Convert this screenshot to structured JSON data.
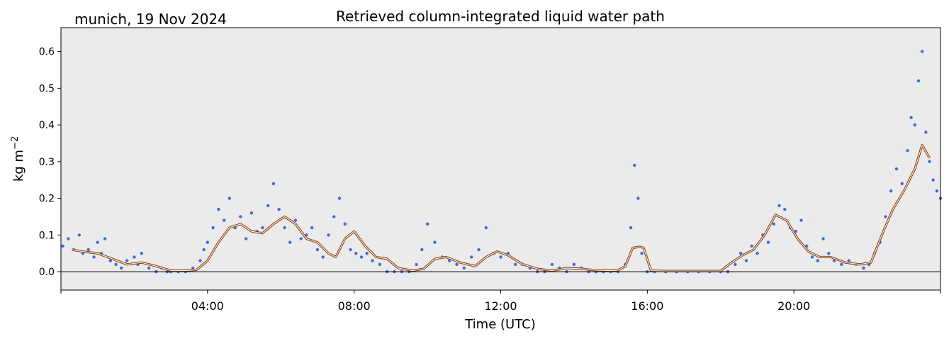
{
  "figure": {
    "location_date": "munich, 19 Nov 2024",
    "title": "Retrieved column-integrated liquid water path"
  },
  "colors": {
    "background_plot": "#ebebeb",
    "raw_points": "#4169e1",
    "smoothed_outer": "#8b4513",
    "smoothed_inner": "#ffffff",
    "zero_line": "#000000"
  },
  "chart_data": {
    "type": "line",
    "title": "Retrieved column-integrated liquid water path",
    "xlabel": "Time (UTC)",
    "ylabel_base": "kg m",
    "ylabel_sup": "−2",
    "xlim": [
      0,
      24
    ],
    "ylim": [
      -0.05,
      0.665
    ],
    "x_ticks": [
      {
        "x": 4,
        "label": "04:00"
      },
      {
        "x": 8,
        "label": "08:00"
      },
      {
        "x": 12,
        "label": "12:00"
      },
      {
        "x": 16,
        "label": "16:00"
      },
      {
        "x": 20,
        "label": "20:00"
      }
    ],
    "x_minor_ticks": [
      0,
      24
    ],
    "y_ticks": [
      {
        "y": 0.0,
        "label": "0.0"
      },
      {
        "y": 0.1,
        "label": "0.1"
      },
      {
        "y": 0.2,
        "label": "0.2"
      },
      {
        "y": 0.3,
        "label": "0.3"
      },
      {
        "y": 0.4,
        "label": "0.4"
      },
      {
        "y": 0.5,
        "label": "0.5"
      },
      {
        "y": 0.6,
        "label": "0.6"
      }
    ],
    "reference_line_y": 0.0,
    "grid": false,
    "series": [
      {
        "kind": "scatter",
        "x": [
          0.05,
          0.2,
          0.35,
          0.5,
          0.6,
          0.75,
          0.9,
          1.0,
          1.1,
          1.2,
          1.35,
          1.5,
          1.65,
          1.8,
          2.0,
          2.1,
          2.2,
          2.4,
          2.6,
          2.75,
          2.9,
          3.0,
          3.2,
          3.4,
          3.6,
          3.8,
          3.9,
          4.0,
          4.15,
          4.3,
          4.45,
          4.6,
          4.75,
          4.9,
          5.05,
          5.2,
          5.35,
          5.5,
          5.65,
          5.8,
          5.95,
          6.1,
          6.25,
          6.4,
          6.55,
          6.7,
          6.85,
          7.0,
          7.15,
          7.3,
          7.45,
          7.6,
          7.75,
          7.9,
          8.05,
          8.2,
          8.35,
          8.5,
          8.7,
          8.9,
          9.1,
          9.3,
          9.5,
          9.7,
          9.85,
          10.0,
          10.2,
          10.4,
          10.6,
          10.8,
          11.0,
          11.2,
          11.4,
          11.6,
          11.8,
          12.0,
          12.2,
          12.4,
          12.6,
          12.8,
          13.0,
          13.2,
          13.4,
          13.6,
          13.8,
          14.0,
          14.2,
          14.4,
          14.6,
          14.8,
          15.0,
          15.2,
          15.4,
          15.55,
          15.65,
          15.75,
          15.85,
          16.0,
          16.2,
          16.5,
          16.8,
          17.1,
          17.4,
          17.7,
          18.0,
          18.2,
          18.4,
          18.55,
          18.7,
          18.85,
          19.0,
          19.15,
          19.3,
          19.45,
          19.6,
          19.75,
          19.9,
          20.05,
          20.2,
          20.35,
          20.5,
          20.65,
          20.8,
          20.95,
          21.1,
          21.3,
          21.5,
          21.7,
          21.9,
          22.05,
          22.2,
          22.35,
          22.5,
          22.65,
          22.8,
          22.95,
          23.1,
          23.2,
          23.3,
          23.4,
          23.5,
          23.6,
          23.7,
          23.8,
          23.9,
          24.0
        ],
        "y": [
          0.07,
          0.09,
          0.06,
          0.1,
          0.05,
          0.06,
          0.04,
          0.08,
          0.05,
          0.09,
          0.03,
          0.02,
          0.01,
          0.03,
          0.04,
          0.02,
          0.05,
          0.01,
          0.0,
          0.01,
          0.0,
          0.0,
          0.0,
          0.0,
          0.01,
          0.03,
          0.06,
          0.08,
          0.12,
          0.17,
          0.14,
          0.2,
          0.12,
          0.15,
          0.09,
          0.16,
          0.11,
          0.12,
          0.18,
          0.24,
          0.17,
          0.12,
          0.08,
          0.14,
          0.09,
          0.1,
          0.12,
          0.06,
          0.04,
          0.1,
          0.15,
          0.2,
          0.13,
          0.06,
          0.05,
          0.04,
          0.05,
          0.03,
          0.02,
          0.0,
          0.0,
          0.0,
          0.0,
          0.02,
          0.06,
          0.13,
          0.08,
          0.04,
          0.03,
          0.02,
          0.01,
          0.04,
          0.06,
          0.12,
          0.05,
          0.04,
          0.05,
          0.02,
          0.02,
          0.01,
          0.0,
          0.0,
          0.02,
          0.01,
          0.0,
          0.02,
          0.01,
          0.0,
          0.0,
          0.0,
          0.0,
          0.0,
          0.02,
          0.12,
          0.29,
          0.2,
          0.05,
          0.0,
          0.0,
          0.0,
          0.0,
          0.0,
          0.0,
          0.0,
          0.0,
          0.0,
          0.02,
          0.05,
          0.03,
          0.07,
          0.05,
          0.1,
          0.08,
          0.13,
          0.18,
          0.17,
          0.12,
          0.11,
          0.14,
          0.07,
          0.04,
          0.03,
          0.09,
          0.05,
          0.03,
          0.02,
          0.03,
          0.02,
          0.01,
          0.02,
          0.05,
          0.08,
          0.15,
          0.22,
          0.28,
          0.24,
          0.33,
          0.42,
          0.4,
          0.52,
          0.6,
          0.38,
          0.3,
          0.25,
          0.22,
          0.2
        ]
      },
      {
        "kind": "line",
        "x": [
          0.3,
          0.6,
          1.0,
          1.4,
          1.8,
          2.2,
          2.6,
          3.0,
          3.4,
          3.7,
          4.0,
          4.3,
          4.6,
          4.9,
          5.2,
          5.5,
          5.8,
          6.1,
          6.4,
          6.7,
          7.0,
          7.3,
          7.5,
          7.75,
          8.0,
          8.3,
          8.6,
          8.9,
          9.2,
          9.6,
          9.9,
          10.2,
          10.5,
          10.9,
          11.3,
          11.6,
          11.9,
          12.2,
          12.6,
          13.0,
          13.4,
          13.8,
          14.2,
          14.6,
          15.0,
          15.2,
          15.4,
          15.6,
          15.8,
          15.9,
          16.1,
          16.5,
          17.0,
          17.5,
          18.0,
          18.3,
          18.6,
          18.9,
          19.2,
          19.5,
          19.8,
          20.1,
          20.4,
          20.7,
          21.0,
          21.4,
          21.8,
          22.1,
          22.4,
          22.7,
          23.0,
          23.3,
          23.5,
          23.7
        ],
        "y": [
          0.06,
          0.055,
          0.05,
          0.035,
          0.02,
          0.025,
          0.015,
          0.003,
          0.003,
          0.005,
          0.03,
          0.08,
          0.12,
          0.13,
          0.11,
          0.105,
          0.13,
          0.15,
          0.13,
          0.09,
          0.08,
          0.05,
          0.04,
          0.09,
          0.11,
          0.07,
          0.04,
          0.035,
          0.01,
          0.003,
          0.008,
          0.035,
          0.04,
          0.025,
          0.015,
          0.04,
          0.055,
          0.045,
          0.02,
          0.008,
          0.003,
          0.01,
          0.008,
          0.004,
          0.003,
          0.004,
          0.015,
          0.065,
          0.068,
          0.065,
          0.003,
          0.002,
          0.002,
          0.002,
          0.002,
          0.025,
          0.045,
          0.06,
          0.1,
          0.155,
          0.14,
          0.09,
          0.055,
          0.04,
          0.04,
          0.025,
          0.02,
          0.025,
          0.1,
          0.17,
          0.22,
          0.28,
          0.345,
          0.31
        ]
      }
    ]
  }
}
